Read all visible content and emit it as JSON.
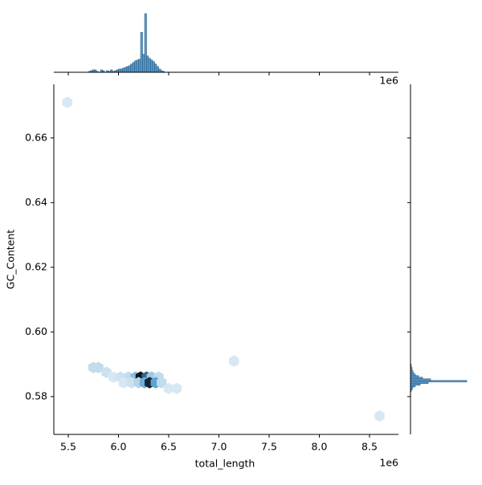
{
  "chart_data": {
    "type": "hexbin",
    "x_label": "total_length",
    "y_label": "GC_Content",
    "x_offset_label": "1e6",
    "xlim": [
      5.356,
      8.788
    ],
    "ylim": [
      0.5683,
      0.6766
    ],
    "xticks": [
      5.5,
      {
        "value": 6,
        "label": "6.0"
      },
      6.5,
      {
        "value": 7,
        "label": "7.0"
      },
      7.5,
      {
        "value": 8,
        "label": "8.0"
      },
      8.5
    ],
    "yticks": [
      0.58,
      {
        "value": 0.6,
        "label": "0.60"
      },
      0.62,
      0.64,
      0.66
    ],
    "cmap": [
      "#ffffff",
      "#4a98c9",
      "#0b1622"
    ],
    "hexes": {
      "x": [
        5.49,
        5.75,
        5.8,
        5.88,
        5.95,
        6.02,
        6.1,
        6.17,
        6.22,
        6.28,
        6.33,
        6.4,
        6.05,
        6.13,
        6.2,
        6.26,
        6.31,
        6.37,
        6.43,
        6.5,
        6.58,
        7.15,
        8.6
      ],
      "y": [
        0.671,
        0.589,
        0.589,
        0.5875,
        0.586,
        0.586,
        0.586,
        0.586,
        0.586,
        0.586,
        0.586,
        0.586,
        0.5843,
        0.5843,
        0.5843,
        0.5843,
        0.5843,
        0.5843,
        0.5843,
        0.5825,
        0.5825,
        0.591,
        0.574
      ],
      "counts": [
        1,
        3,
        3,
        2,
        1,
        2,
        3,
        8,
        30,
        20,
        6,
        3,
        1,
        2,
        4,
        10,
        28,
        12,
        3,
        1,
        1,
        1,
        1
      ]
    },
    "hist_color": "#5b9bcf",
    "x_hist": {
      "bins": [
        5.7,
        5.72,
        5.74,
        5.76,
        5.78,
        5.8,
        5.82,
        5.84,
        5.86,
        5.88,
        5.9,
        5.92,
        5.94,
        5.96,
        5.98,
        6.0,
        6.02,
        6.04,
        6.06,
        6.08,
        6.1,
        6.12,
        6.14,
        6.16,
        6.18,
        6.2,
        6.22,
        6.24,
        6.26,
        6.28,
        6.3,
        6.32,
        6.34,
        6.36,
        6.38,
        6.4,
        6.42,
        6.44,
        6.46
      ],
      "counts": [
        1,
        2,
        3,
        3,
        1,
        0,
        3,
        2,
        0,
        2,
        1,
        3,
        1,
        2,
        3,
        4,
        4,
        5,
        6,
        7,
        8,
        10,
        12,
        14,
        15,
        16,
        49,
        22,
        72,
        20,
        17,
        15,
        13,
        10,
        7,
        4,
        2,
        1
      ]
    },
    "y_hist": {
      "bins": [
        0.579,
        0.5795,
        0.58,
        0.5805,
        0.581,
        0.5815,
        0.582,
        0.5825,
        0.583,
        0.5835,
        0.584,
        0.5845,
        0.585,
        0.5855,
        0.586,
        0.5865,
        0.587,
        0.5875,
        0.588,
        0.5885,
        0.589,
        0.5895,
        0.59
      ],
      "counts": [
        0,
        0,
        0,
        0,
        0,
        1,
        2,
        3,
        6,
        12,
        22,
        70,
        25,
        15,
        10,
        6,
        4,
        3,
        2,
        2,
        1,
        1
      ]
    }
  }
}
